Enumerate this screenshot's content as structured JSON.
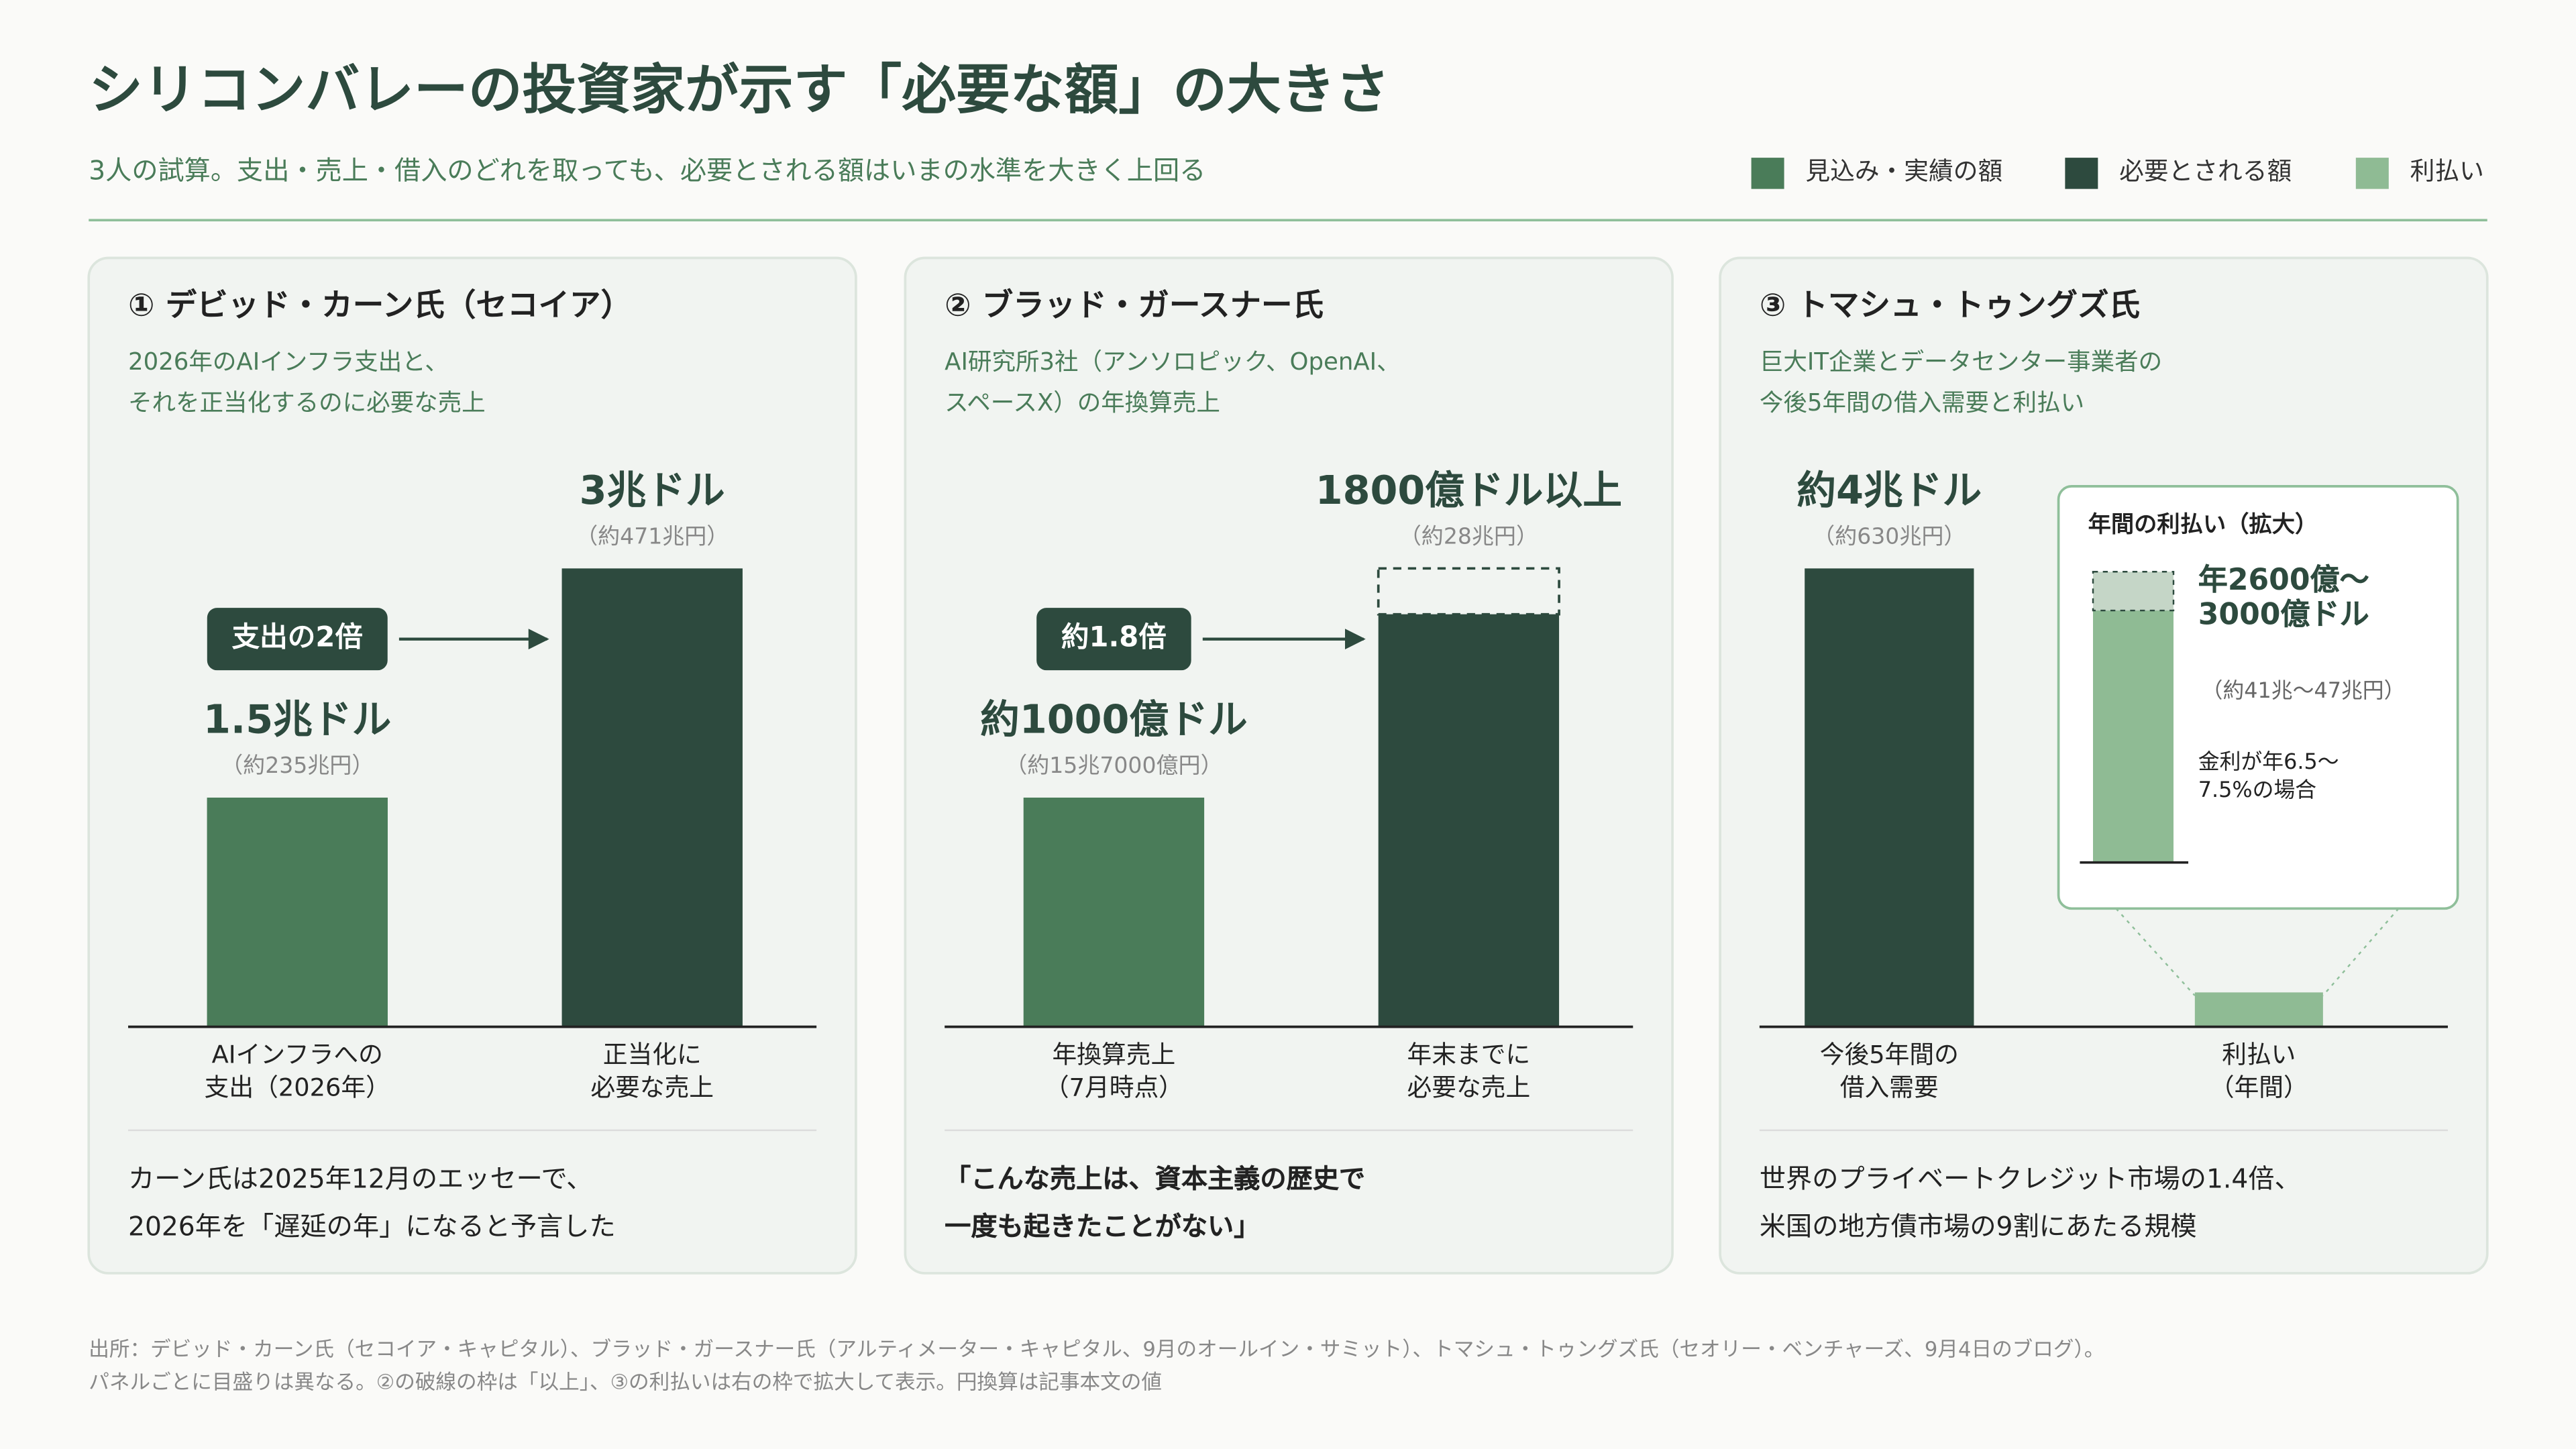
{
  "header": {
    "title": "シリコンバレーの投資家が示す「必要な額」の大きさ",
    "subtitle": "3人の試算。支出・売上・借入のどれを取っても、必要とされる額はいまの水準を大きく上回る"
  },
  "legend": [
    {
      "name": "見込み・実績の額",
      "color": "#4a7c59"
    },
    {
      "name": "必要とされる額",
      "color": "#2d4a3e"
    },
    {
      "name": "利払い",
      "color": "#8fbb94"
    }
  ],
  "chart_data": [
    {
      "type": "bar",
      "title": "① デビッド・カーン氏（セコイア）",
      "subtitle": "2026年のAIインフラ支出と、\nそれを正当化するのに必要な売上",
      "categories": [
        "AIインフラへの\n支出（2026年）",
        "正当化に\n必要な売上"
      ],
      "values": [
        1.5,
        3
      ],
      "value_labels": [
        "1.5兆ドル",
        "3兆ドル"
      ],
      "yen_labels": [
        "（約235兆円）",
        "（約471兆円）"
      ],
      "colors": [
        "#4a7c59",
        "#2d4a3e"
      ],
      "open_ended": [
        false,
        false
      ],
      "ylim": [
        0,
        3
      ],
      "annotation": "支出の2倍",
      "note": "カーン氏は2025年12月のエッセーで、\n2026年を「遅延の年」になると予言した"
    },
    {
      "type": "bar",
      "title": "② ブラッド・ガースナー氏",
      "subtitle": "AI研究所3社（アンソロピック、OpenAI、\nスペースX）の年換算売上",
      "categories": [
        "年換算売上\n（7月時点）",
        "年末までに\n必要な売上"
      ],
      "values": [
        1000,
        1800
      ],
      "value_labels": [
        "約1000億ドル",
        "1800億ドル以上"
      ],
      "yen_labels": [
        "（約15兆7000億円）",
        "（約28兆円）"
      ],
      "colors": [
        "#4a7c59",
        "#2d4a3e"
      ],
      "open_ended": [
        false,
        true
      ],
      "ylim": [
        0,
        2000
      ],
      "annotation": "約1.8倍",
      "note": "「こんな売上は、資本主義の歴史で\n一度も起きたことがない」"
    },
    {
      "type": "bar",
      "title": "③ トマシュ・トゥングズ氏",
      "subtitle": "巨大IT企業とデータセンター事業者の\n今後5年間の借入需要と利払い",
      "categories": [
        "今後5年間の\n借入需要",
        "利払い\n（年間）"
      ],
      "values": [
        4,
        0.3
      ],
      "value_labels": [
        "約4兆ドル",
        null
      ],
      "yen_labels": [
        "（約630兆円）",
        null
      ],
      "colors": [
        "#2d4a3e",
        "#8fbb94"
      ],
      "open_ended": [
        false,
        false
      ],
      "ylim": [
        0,
        4
      ],
      "inset": {
        "title": "年間の利払い（拡大）",
        "values": [
          0.26,
          0.3
        ],
        "ylim": [
          0,
          0.3
        ],
        "value_label": "年2600億〜\n3000億ドル",
        "yen_label": "（約41兆〜47兆円）",
        "caption": "金利が年6.5〜\n7.5%の場合"
      },
      "note": "世界のプライベートクレジット市場の1.4倍、\n米国の地方債市場の9割にあたる規模"
    }
  ],
  "footer": {
    "source": "出所：デビッド・カーン氏（セコイア・キャピタル）、ブラッド・ガースナー氏（アルティメーター・キャピタル、9月のオールイン・サミット）、トマシュ・トゥングズ氏（セオリー・ベンチャーズ、9月4日のブログ）。",
    "note": "パネルごとに目盛りは異なる。②の破線の枠は「以上」、③の利払いは右の枠で拡大して表示。円換算は記事本文の値"
  }
}
